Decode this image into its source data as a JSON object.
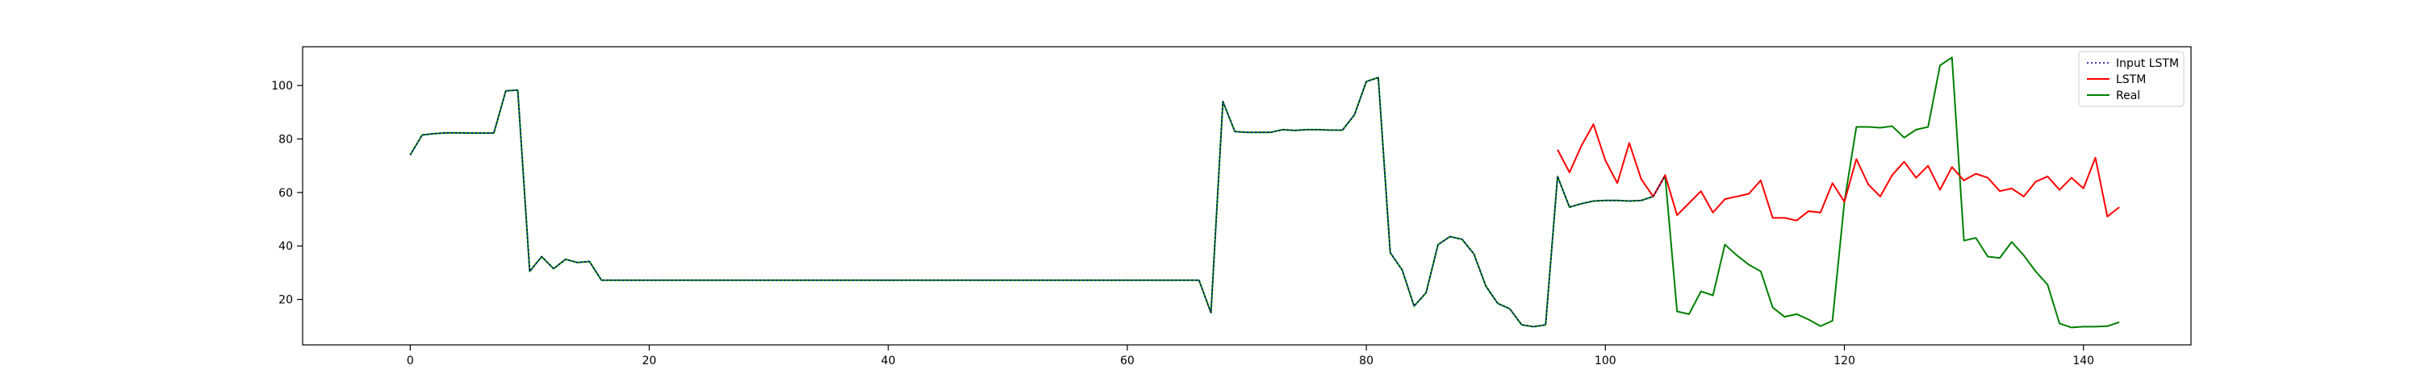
{
  "chart_data": {
    "type": "line",
    "title": "",
    "xlabel": "",
    "ylabel": "",
    "xlim": [
      -9,
      149
    ],
    "ylim": [
      3,
      114.5
    ],
    "xticks": [
      0,
      20,
      40,
      60,
      80,
      100,
      120,
      140
    ],
    "yticks": [
      20,
      40,
      60,
      80,
      100
    ],
    "x_tick_labels": [
      "0",
      "20",
      "40",
      "60",
      "80",
      "100",
      "120",
      "140"
    ],
    "y_tick_labels": [
      "20",
      "40",
      "60",
      "80",
      "100"
    ],
    "grid": false,
    "legend_position": "top-right",
    "series": [
      {
        "name": "Input LSTM",
        "color": "#00008b",
        "style": "dotted",
        "x_start": 0,
        "values": [
          74.0,
          81.5,
          82.0,
          82.3,
          82.3,
          82.2,
          82.2,
          82.2,
          98.0,
          98.3,
          30.5,
          36.0,
          31.5,
          35.0,
          33.8,
          34.2,
          27.2,
          27.2,
          27.2,
          27.2,
          27.2,
          27.2,
          27.2,
          27.2,
          27.2,
          27.2,
          27.2,
          27.2,
          27.2,
          27.2,
          27.2,
          27.2,
          27.2,
          27.2,
          27.2,
          27.2,
          27.2,
          27.2,
          27.2,
          27.2,
          27.2,
          27.2,
          27.2,
          27.2,
          27.2,
          27.2,
          27.2,
          27.2,
          27.2,
          27.2,
          27.2,
          27.2,
          27.2,
          27.2,
          27.2,
          27.2,
          27.2,
          27.2,
          27.2,
          27.2,
          27.2,
          27.2,
          27.2,
          27.2,
          27.2,
          27.2,
          27.2,
          15.0,
          94.0,
          82.8,
          82.5,
          82.5,
          82.5,
          83.5,
          83.2,
          83.5,
          83.5,
          83.3,
          83.3,
          89.0,
          101.5,
          103.0,
          37.5,
          31.0,
          17.5,
          22.5,
          40.5,
          43.5,
          42.5,
          37.0,
          25.0,
          18.5,
          16.5,
          10.5,
          9.8,
          10.5,
          66.0,
          54.5,
          55.8,
          56.8,
          57.0,
          57.0,
          56.8,
          57.0,
          58.5,
          66.2
        ]
      },
      {
        "name": "LSTM",
        "color": "#ff0000",
        "style": "solid",
        "x_start": 96,
        "values": [
          76.0,
          67.5,
          77.5,
          85.5,
          72.0,
          63.5,
          78.5,
          65.0,
          58.5,
          66.5,
          51.5,
          56.0,
          60.5,
          52.5,
          57.5,
          58.5,
          59.5,
          64.5,
          50.5,
          50.5,
          49.5,
          53.0,
          52.5,
          63.5,
          56.5,
          72.5,
          63.0,
          58.5,
          66.5,
          71.5,
          65.5,
          70.0,
          61.0,
          69.5,
          64.5,
          67.0,
          65.5,
          60.5,
          61.5,
          58.5,
          64.0,
          66.0,
          61.0,
          65.5,
          61.5,
          73.0,
          51.0,
          54.5
        ]
      },
      {
        "name": "Real",
        "color": "#008000",
        "style": "solid",
        "x_start": 0,
        "values": [
          74.0,
          81.5,
          82.0,
          82.3,
          82.3,
          82.2,
          82.2,
          82.2,
          98.0,
          98.3,
          30.5,
          36.0,
          31.5,
          35.0,
          33.8,
          34.2,
          27.2,
          27.2,
          27.2,
          27.2,
          27.2,
          27.2,
          27.2,
          27.2,
          27.2,
          27.2,
          27.2,
          27.2,
          27.2,
          27.2,
          27.2,
          27.2,
          27.2,
          27.2,
          27.2,
          27.2,
          27.2,
          27.2,
          27.2,
          27.2,
          27.2,
          27.2,
          27.2,
          27.2,
          27.2,
          27.2,
          27.2,
          27.2,
          27.2,
          27.2,
          27.2,
          27.2,
          27.2,
          27.2,
          27.2,
          27.2,
          27.2,
          27.2,
          27.2,
          27.2,
          27.2,
          27.2,
          27.2,
          27.2,
          27.2,
          27.2,
          27.2,
          15.0,
          94.0,
          82.8,
          82.5,
          82.5,
          82.5,
          83.5,
          83.2,
          83.5,
          83.5,
          83.3,
          83.3,
          89.0,
          101.5,
          103.0,
          37.5,
          31.0,
          17.5,
          22.5,
          40.5,
          43.5,
          42.5,
          37.0,
          25.0,
          18.5,
          16.5,
          10.5,
          9.8,
          10.5,
          66.0,
          54.5,
          55.8,
          56.8,
          57.0,
          57.0,
          56.8,
          57.0,
          58.5,
          66.2,
          15.5,
          14.5,
          23.0,
          21.5,
          40.5,
          36.5,
          33.0,
          30.5,
          17.0,
          13.5,
          14.5,
          12.5,
          10.0,
          12.0,
          56.5,
          84.5,
          84.5,
          84.2,
          84.8,
          80.5,
          83.5,
          84.5,
          107.5,
          110.5,
          42.0,
          43.0,
          36.0,
          35.5,
          41.5,
          36.5,
          30.5,
          25.5,
          11.0,
          9.5,
          9.8,
          9.8,
          10.0,
          11.5
        ]
      }
    ]
  }
}
